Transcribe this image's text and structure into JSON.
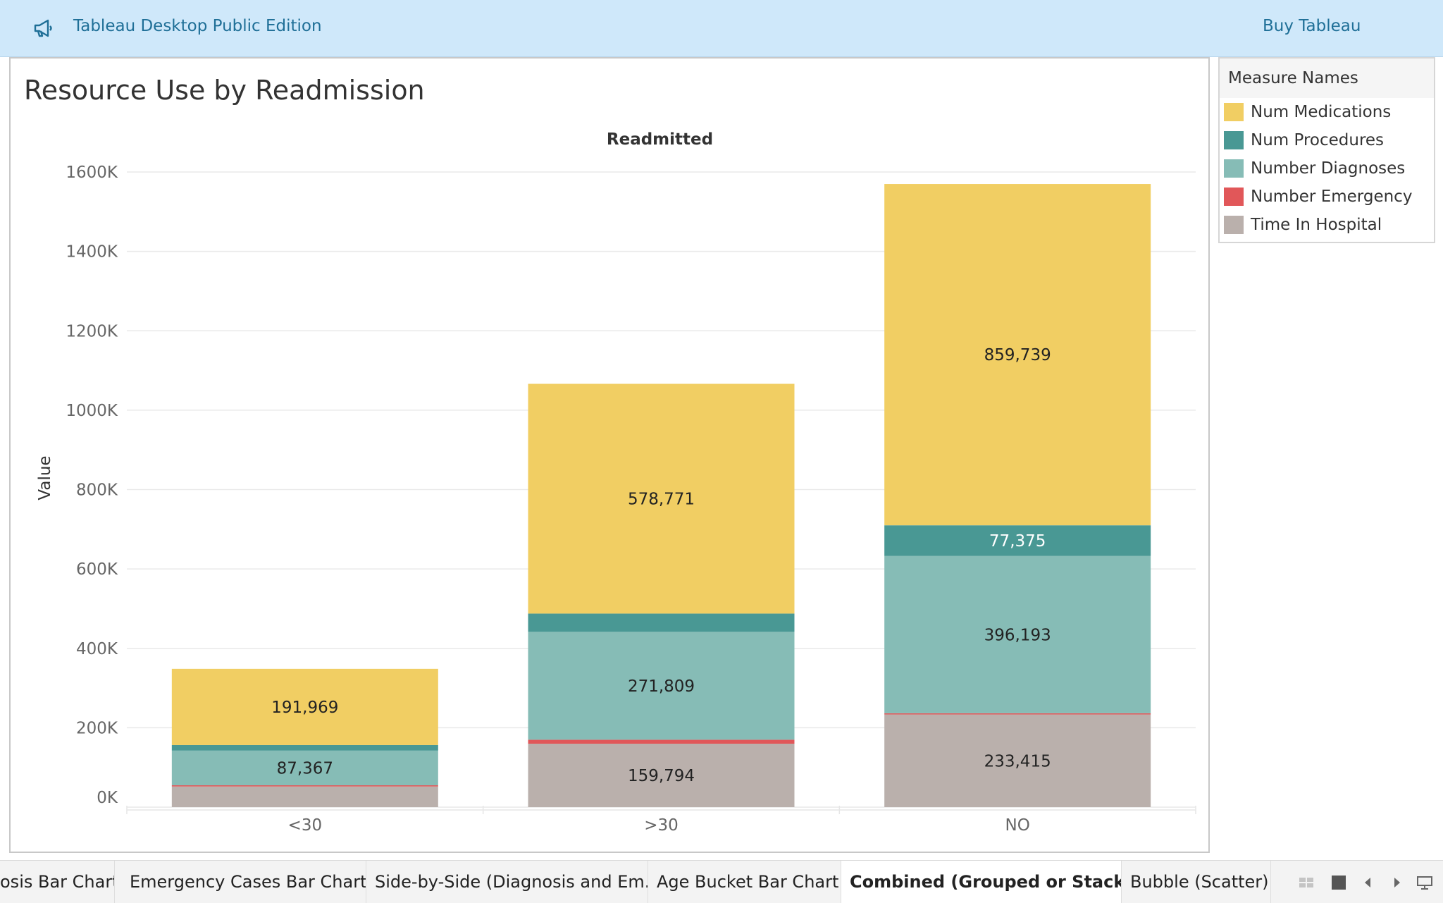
{
  "header": {
    "app_title": "Tableau Desktop Public Edition",
    "buy_label": "Buy Tableau",
    "icon": "megaphone-icon"
  },
  "chart_data": {
    "type": "bar",
    "stacked": true,
    "title": "Resource Use by Readmission",
    "column_header": "Readmitted",
    "xlabel": "",
    "ylabel": "Value",
    "ylim": [
      0,
      1600000
    ],
    "yticks": [
      "0K",
      "200K",
      "400K",
      "600K",
      "800K",
      "1000K",
      "1200K",
      "1400K",
      "1600K"
    ],
    "grid": true,
    "legend_position": "right",
    "categories": [
      "<30",
      ">30",
      "NO"
    ],
    "series": [
      {
        "name": "Time In Hospital",
        "color": "#bab0ac",
        "values": [
          52000,
          159794,
          233415
        ],
        "labels": [
          "",
          "159,794",
          "233,415"
        ]
      },
      {
        "name": "Number Emergency",
        "color": "#e15759",
        "values": [
          3000,
          10000,
          3000
        ],
        "labels": [
          "",
          "",
          ""
        ]
      },
      {
        "name": "Number Diagnoses",
        "color": "#86bcb6",
        "values": [
          87367,
          271809,
          396193
        ],
        "labels": [
          "87,367",
          "271,809",
          "396,193"
        ]
      },
      {
        "name": "Num Procedures",
        "color": "#499894",
        "values": [
          14000,
          46000,
          77375
        ],
        "labels": [
          "",
          "",
          "77,375"
        ]
      },
      {
        "name": "Num Medications",
        "color": "#f1ce63",
        "values": [
          191969,
          578771,
          859739
        ],
        "labels": [
          "191,969",
          "578,771",
          "859,739"
        ]
      }
    ]
  },
  "legend": {
    "title": "Measure Names",
    "items": [
      {
        "label": "Num Medications",
        "color": "#f1ce63"
      },
      {
        "label": "Num Procedures",
        "color": "#499894"
      },
      {
        "label": "Number Diagnoses",
        "color": "#86bcb6"
      },
      {
        "label": "Number Emergency",
        "color": "#e15759"
      },
      {
        "label": "Time In Hospital",
        "color": "#bab0ac"
      }
    ]
  },
  "tabs": [
    {
      "label": "osis Bar Chart",
      "active": false
    },
    {
      "label": "Emergency Cases Bar Chart",
      "active": false
    },
    {
      "label": "Side-by-Side (Diagnosis and Em...",
      "active": false
    },
    {
      "label": "Age Bucket Bar Chart",
      "active": false
    },
    {
      "label": "Combined (Grouped or Stacke...",
      "active": true
    },
    {
      "label": "Bubble (Scatter) C",
      "active": false
    }
  ],
  "controls": [
    "grid-view-icon",
    "single-view-icon",
    "prev-sheet-icon",
    "next-sheet-icon",
    "presentation-icon"
  ]
}
